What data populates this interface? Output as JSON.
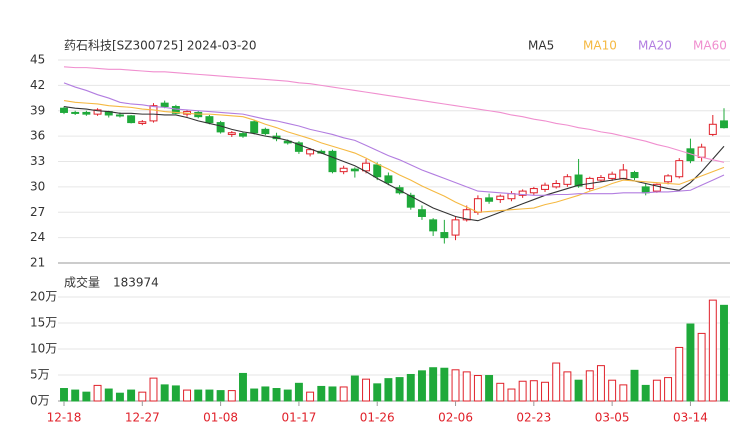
{
  "chart_data": [
    {
      "type": "candlestick",
      "title": "药石科技[SZ300725] 2024-03-20",
      "categories": [
        "12-18",
        null,
        null,
        null,
        null,
        null,
        null,
        "12-27",
        null,
        null,
        null,
        null,
        null,
        null,
        "01-08",
        null,
        null,
        null,
        null,
        null,
        null,
        "01-17",
        null,
        null,
        null,
        null,
        null,
        null,
        "01-26",
        null,
        null,
        null,
        null,
        null,
        null,
        "02-06",
        null,
        null,
        null,
        null,
        null,
        null,
        "02-23",
        null,
        null,
        null,
        null,
        null,
        null,
        "03-05",
        null,
        null,
        null,
        null,
        null,
        null,
        "03-14",
        null,
        null,
        null
      ],
      "open": [
        39.3,
        38.8,
        38.8,
        38.6,
        38.9,
        38.5,
        38.4,
        37.5,
        37.8,
        39.9,
        39.5,
        38.6,
        38.8,
        38.3,
        37.6,
        36.2,
        36.3,
        37.7,
        36.8,
        36.0,
        35.4,
        35.2,
        33.9,
        34.2,
        34.2,
        31.8,
        32.1,
        31.9,
        32.6,
        31.3,
        29.9,
        29.0,
        27.3,
        26.1,
        24.6,
        24.3,
        26.1,
        27.0,
        28.7,
        28.5,
        28.6,
        29.0,
        29.3,
        29.7,
        30.0,
        30.3,
        31.4,
        29.8,
        30.8,
        31.0,
        31.0,
        31.7,
        30.0,
        29.5,
        30.6,
        31.2,
        34.5,
        33.5,
        36.2,
        37.8
      ],
      "high": [
        39.5,
        39.0,
        39.0,
        39.3,
        39.0,
        38.8,
        38.5,
        37.9,
        39.9,
        40.2,
        39.7,
        39.1,
        39.0,
        38.5,
        37.8,
        36.6,
        36.5,
        37.9,
        37.0,
        36.4,
        35.6,
        35.4,
        34.6,
        34.4,
        34.4,
        32.5,
        32.3,
        33.3,
        32.9,
        31.7,
        30.2,
        29.3,
        27.8,
        26.3,
        26.1,
        26.5,
        27.8,
        29.0,
        29.2,
        29.1,
        29.5,
        29.7,
        30.0,
        30.5,
        30.8,
        31.5,
        33.3,
        31.2,
        31.4,
        31.8,
        32.7,
        31.9,
        30.4,
        30.4,
        31.5,
        33.4,
        35.7,
        35.1,
        38.5,
        39.3
      ],
      "low": [
        38.6,
        38.5,
        38.4,
        38.4,
        38.2,
        38.2,
        37.5,
        37.3,
        37.6,
        39.3,
        38.6,
        38.3,
        38.1,
        37.4,
        36.3,
        35.9,
        35.8,
        36.2,
        36.1,
        35.4,
        35.0,
        33.9,
        33.6,
        33.9,
        31.6,
        31.5,
        31.1,
        31.6,
        30.8,
        30.2,
        29.1,
        27.3,
        26.1,
        24.2,
        23.3,
        23.7,
        25.9,
        26.7,
        28.0,
        28.1,
        28.3,
        28.7,
        29.0,
        29.4,
        29.8,
        30.0,
        29.9,
        29.6,
        30.6,
        30.7,
        30.9,
        30.8,
        29.0,
        29.3,
        30.3,
        31.0,
        32.8,
        33.0,
        36.0,
        36.9
      ],
      "close": [
        38.8,
        38.7,
        38.6,
        39.1,
        38.5,
        38.4,
        37.6,
        37.7,
        39.6,
        39.5,
        38.7,
        38.9,
        38.3,
        37.6,
        36.5,
        36.4,
        36.0,
        36.4,
        36.3,
        35.7,
        35.2,
        34.2,
        34.4,
        34.0,
        31.8,
        32.2,
        31.9,
        32.8,
        31.2,
        30.5,
        29.3,
        27.6,
        26.5,
        24.8,
        24.0,
        26.1,
        27.3,
        28.6,
        28.3,
        28.9,
        29.2,
        29.5,
        29.8,
        30.2,
        30.4,
        31.2,
        30.1,
        31.0,
        31.1,
        31.5,
        32.0,
        31.1,
        29.3,
        30.3,
        31.3,
        33.1,
        33.1,
        34.7,
        37.4,
        37.0
      ],
      "up_color": "#e0212a",
      "down_color": "#1fa93a",
      "series": [
        {
          "name": "MA5",
          "color": "#333333",
          "values": [
            39.5,
            39.3,
            39.2,
            39.0,
            38.9,
            38.7,
            38.7,
            38.6,
            38.6,
            38.5,
            38.5,
            38.2,
            37.8,
            37.5,
            37.2,
            36.8,
            36.5,
            36.3,
            36.0,
            35.8,
            35.5,
            35.0,
            34.5,
            34.0,
            33.5,
            33.0,
            32.5,
            31.8,
            31.0,
            30.3,
            29.6,
            28.9,
            28.2,
            27.5,
            27.0,
            26.5,
            26.2,
            26.0,
            26.5,
            27.0,
            27.5,
            28.0,
            28.5,
            29.0,
            29.4,
            29.8,
            30.2,
            30.4,
            30.6,
            30.8,
            31.0,
            30.7,
            30.4,
            30.1,
            29.8,
            29.6,
            30.5,
            31.8,
            33.3,
            34.8
          ]
        },
        {
          "name": "MA10",
          "color": "#f5b942",
          "values": [
            40.2,
            40.0,
            39.9,
            39.8,
            39.6,
            39.5,
            39.4,
            39.2,
            39.1,
            38.9,
            38.8,
            38.7,
            38.6,
            38.6,
            38.5,
            38.4,
            38.3,
            37.9,
            37.4,
            37.0,
            36.5,
            36.1,
            35.7,
            35.2,
            34.8,
            34.4,
            34.0,
            33.4,
            32.7,
            32.1,
            31.4,
            30.8,
            30.1,
            29.5,
            28.9,
            28.2,
            27.6,
            27.0,
            27.1,
            27.2,
            27.3,
            27.4,
            27.5,
            27.9,
            28.2,
            28.6,
            29.0,
            29.5,
            29.9,
            30.4,
            30.8,
            30.7,
            30.6,
            30.5,
            30.4,
            30.3,
            30.8,
            31.3,
            31.8,
            32.3
          ]
        },
        {
          "name": "MA20",
          "color": "#b27de0",
          "values": [
            42.3,
            41.8,
            41.4,
            40.9,
            40.5,
            40.0,
            39.8,
            39.7,
            39.5,
            39.4,
            39.2,
            39.1,
            39.0,
            38.9,
            38.8,
            38.7,
            38.6,
            38.3,
            38.0,
            37.8,
            37.5,
            37.2,
            36.8,
            36.5,
            36.2,
            35.8,
            35.5,
            34.9,
            34.3,
            33.7,
            33.2,
            32.6,
            32.0,
            31.5,
            31.0,
            30.5,
            30.0,
            29.5,
            29.4,
            29.3,
            29.2,
            29.1,
            29.0,
            29.0,
            29.1,
            29.1,
            29.2,
            29.2,
            29.2,
            29.2,
            29.3,
            29.3,
            29.3,
            29.4,
            29.4,
            29.5,
            29.6,
            30.2,
            30.8,
            31.4
          ]
        },
        {
          "name": "MA60",
          "color": "#f08fcf",
          "values": [
            44.2,
            44.1,
            44.1,
            44.0,
            43.9,
            43.9,
            43.8,
            43.7,
            43.6,
            43.6,
            43.5,
            43.4,
            43.3,
            43.2,
            43.1,
            43.0,
            42.9,
            42.8,
            42.7,
            42.6,
            42.5,
            42.3,
            42.2,
            42.0,
            41.8,
            41.6,
            41.4,
            41.2,
            41.0,
            40.8,
            40.6,
            40.4,
            40.2,
            40.0,
            39.8,
            39.6,
            39.4,
            39.2,
            39.0,
            38.8,
            38.5,
            38.3,
            38.0,
            37.8,
            37.5,
            37.3,
            37.0,
            36.8,
            36.5,
            36.3,
            36.0,
            35.7,
            35.4,
            35.0,
            34.7,
            34.3,
            33.9,
            33.5,
            33.2,
            32.9
          ]
        }
      ],
      "ylim": [
        21,
        45
      ],
      "yticks": [
        21,
        24,
        27,
        30,
        33,
        36,
        39,
        42,
        45
      ],
      "grid": true
    },
    {
      "type": "bar",
      "title": "成交量",
      "latest": 183974,
      "values": [
        2.4,
        2.1,
        1.7,
        3.0,
        2.3,
        1.5,
        2.1,
        1.7,
        4.4,
        3.1,
        2.9,
        2.1,
        2.1,
        2.1,
        2.0,
        2.0,
        5.3,
        2.3,
        2.7,
        2.4,
        2.1,
        3.4,
        1.7,
        2.8,
        2.7,
        2.7,
        4.8,
        4.2,
        3.3,
        4.3,
        4.5,
        5.1,
        5.8,
        6.4,
        6.3,
        6.0,
        5.6,
        4.9,
        4.9,
        3.4,
        2.3,
        3.8,
        3.9,
        3.6,
        7.3,
        5.6,
        4.0,
        5.8,
        6.8,
        4.0,
        3.1,
        5.9,
        3.0,
        4.0,
        4.5,
        10.3,
        14.8,
        13.0,
        19.4,
        18.3974
      ],
      "ylim": [
        0,
        20
      ],
      "yticks": [
        {
          "value": 0,
          "label": "0万"
        },
        {
          "value": 5,
          "label": "5万"
        },
        {
          "value": 10,
          "label": "10万"
        },
        {
          "value": 15,
          "label": "15万"
        },
        {
          "value": 20,
          "label": "20万"
        }
      ],
      "grid": true
    }
  ]
}
